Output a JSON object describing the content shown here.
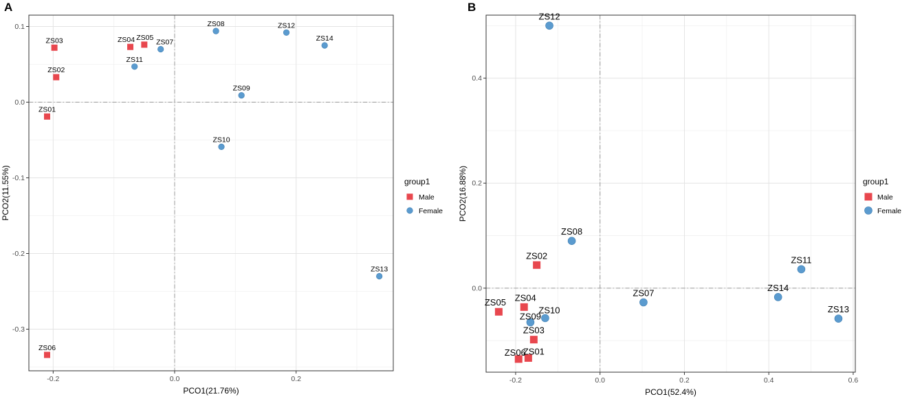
{
  "chart_data": [
    {
      "panel_label": "A",
      "type": "scatter",
      "title": "",
      "xlabel": "PCO1(21.76%)",
      "ylabel": "PCO2(11.55%)",
      "xlim": [
        -0.24,
        0.36
      ],
      "ylim": [
        -0.355,
        0.115
      ],
      "xticks": [
        -0.2,
        0.0,
        0.2
      ],
      "xtick_labels": [
        "-0.2",
        "0.0",
        "0.2"
      ],
      "yticks": [
        -0.3,
        -0.2,
        -0.1,
        0.0,
        0.1
      ],
      "ytick_labels": [
        "-0.3",
        "-0.2",
        "-0.1",
        "0.0",
        "0.1"
      ],
      "reference_lines": {
        "x": 0,
        "y": 0
      },
      "grid": true,
      "legend": {
        "title": "group1",
        "position": "right",
        "entries": [
          {
            "name": "Male",
            "shape": "square",
            "color": "#E8474E"
          },
          {
            "name": "Female",
            "shape": "circle",
            "color": "#5B9BCF"
          }
        ]
      },
      "series": [
        {
          "name": "Male",
          "color": "#E8474E",
          "shape": "square",
          "points": [
            {
              "label": "ZS01",
              "x": -0.21,
              "y": -0.019
            },
            {
              "label": "ZS02",
              "x": -0.195,
              "y": 0.033
            },
            {
              "label": "ZS03",
              "x": -0.198,
              "y": 0.072
            },
            {
              "label": "ZS04",
              "x": -0.073,
              "y": 0.073
            },
            {
              "label": "ZS05",
              "x": -0.05,
              "y": 0.076
            },
            {
              "label": "ZS06",
              "x": -0.21,
              "y": -0.334
            }
          ]
        },
        {
          "name": "Female",
          "color": "#5B9BCF",
          "shape": "circle",
          "points": [
            {
              "label": "ZS07",
              "x": -0.023,
              "y": 0.07
            },
            {
              "label": "ZS08",
              "x": 0.068,
              "y": 0.094
            },
            {
              "label": "ZS09",
              "x": 0.11,
              "y": 0.009
            },
            {
              "label": "ZS10",
              "x": 0.077,
              "y": -0.059
            },
            {
              "label": "ZS11",
              "x": -0.066,
              "y": 0.047
            },
            {
              "label": "ZS12",
              "x": 0.184,
              "y": 0.092
            },
            {
              "label": "ZS13",
              "x": 0.337,
              "y": -0.23
            },
            {
              "label": "ZS14",
              "x": 0.247,
              "y": 0.075
            }
          ]
        }
      ]
    },
    {
      "panel_label": "B",
      "type": "scatter",
      "title": "",
      "xlabel": "PCO1(52.4%)",
      "ylabel": "PCO2(16.88%)",
      "xlim": [
        -0.27,
        0.605
      ],
      "ylim": [
        -0.16,
        0.52
      ],
      "xticks": [
        -0.2,
        0.0,
        0.2,
        0.4,
        0.6
      ],
      "xtick_labels": [
        "-0.2",
        "0.0",
        "0.2",
        "0.4",
        "0.6"
      ],
      "yticks": [
        0.0,
        0.2,
        0.4
      ],
      "ytick_labels": [
        "0.0",
        "0.2",
        "0.4"
      ],
      "reference_lines": {
        "x": 0,
        "y": 0
      },
      "grid": true,
      "legend": {
        "title": "group1",
        "position": "right",
        "entries": [
          {
            "name": "Male",
            "shape": "square",
            "color": "#E8474E"
          },
          {
            "name": "Female",
            "shape": "circle",
            "color": "#5B9BCF"
          }
        ]
      },
      "series": [
        {
          "name": "Male",
          "color": "#E8474E",
          "shape": "square",
          "points": [
            {
              "label": "ZS01",
              "x": -0.17,
              "y": -0.133
            },
            {
              "label": "ZS02",
              "x": -0.15,
              "y": 0.044
            },
            {
              "label": "ZS03",
              "x": -0.157,
              "y": -0.098
            },
            {
              "label": "ZS04",
              "x": -0.18,
              "y": -0.036
            },
            {
              "label": "ZS05",
              "x": -0.24,
              "y": -0.045
            },
            {
              "label": "ZS06",
              "x": -0.193,
              "y": -0.135
            }
          ]
        },
        {
          "name": "Female",
          "color": "#5B9BCF",
          "shape": "circle",
          "points": [
            {
              "label": "ZS07",
              "x": 0.103,
              "y": -0.027
            },
            {
              "label": "ZS08",
              "x": -0.067,
              "y": 0.09
            },
            {
              "label": "ZS09",
              "x": -0.165,
              "y": -0.065
            },
            {
              "label": "ZS10",
              "x": -0.13,
              "y": -0.057
            },
            {
              "label": "ZS11",
              "x": 0.477,
              "y": 0.036
            },
            {
              "label": "ZS12",
              "x": -0.12,
              "y": 0.5
            },
            {
              "label": "ZS13",
              "x": 0.565,
              "y": -0.058
            },
            {
              "label": "ZS14",
              "x": 0.422,
              "y": -0.017
            }
          ]
        }
      ]
    }
  ]
}
